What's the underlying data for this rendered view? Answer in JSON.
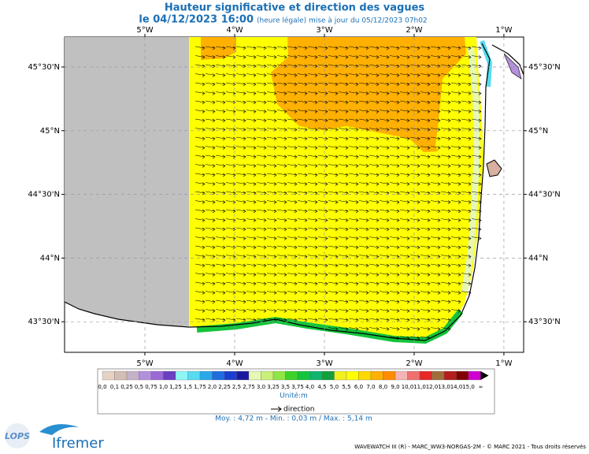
{
  "title": "Hauteur significative et direction des vagues",
  "subtitle": {
    "date": "le 04/12/2023 16:00",
    "note": "(heure légale) mise à jour du 05/12/2023 07h02"
  },
  "map": {
    "lonlim": [
      -5.895,
      -0.78
    ],
    "latlim": [
      43.26,
      45.735
    ],
    "lonticks": [
      {
        "value": -5,
        "label": "5°W"
      },
      {
        "value": -4,
        "label": "4°W"
      },
      {
        "value": -3,
        "label": "3°W"
      },
      {
        "value": -2,
        "label": "2°W"
      },
      {
        "value": -1,
        "label": "1°W"
      }
    ],
    "latticks": [
      {
        "value": 45.5,
        "label": "45°30'N"
      },
      {
        "value": 45,
        "label": "45°N"
      },
      {
        "value": 44.5,
        "label": "44°30'N"
      },
      {
        "value": 44,
        "label": "44°N"
      },
      {
        "value": 43.5,
        "label": "43°30'N"
      }
    ]
  },
  "colorbar": {
    "labels": [
      "0,0",
      "0,1",
      "0,25",
      "0,5",
      "0,75",
      "1,0",
      "1,25",
      "1,5",
      "1,75",
      "2,0",
      "2,25",
      "2,5",
      "2,75",
      "3,0",
      "3,25",
      "3,5",
      "3,75",
      "4,0",
      "4,5",
      "5,0",
      "5,5",
      "6,0",
      "7,0",
      "8,0",
      "9,0",
      "10,0",
      "11,0",
      "12,0",
      "13,0",
      "14,0",
      "15,0",
      "∞"
    ],
    "colors": [
      "#e6d2c3",
      "#d4bdb3",
      "#c4b2c9",
      "#b48fdc",
      "#9b6ad6",
      "#6a3fc0",
      "#8ff6f6",
      "#55dcf0",
      "#2aa8ec",
      "#1e6ee0",
      "#1a3ed0",
      "#1a1aa0",
      "#e6f8b4",
      "#c8f07a",
      "#8ee646",
      "#3cd228",
      "#14c43c",
      "#10b46e",
      "#12a03c",
      "#f0f01e",
      "#ffff00",
      "#ffd800",
      "#ffb000",
      "#ff8c00",
      "#f4b4b4",
      "#f07070",
      "#e62828",
      "#a06e3c",
      "#b41e1e",
      "#820000",
      "#d000d0"
    ],
    "unit": "Unité:m",
    "direction": "direction"
  },
  "stats": "Moy. : 4,72 m   -   Min. : 0,03 m / Max. : 5,14 m",
  "footer": "WAVEWATCH III (R) - MARC_WW3-NORGAS-2M - © MARC 2021 - Tous droits réservés",
  "logos": {
    "lops": "LOPS",
    "ifremer": "Ifremer"
  }
}
